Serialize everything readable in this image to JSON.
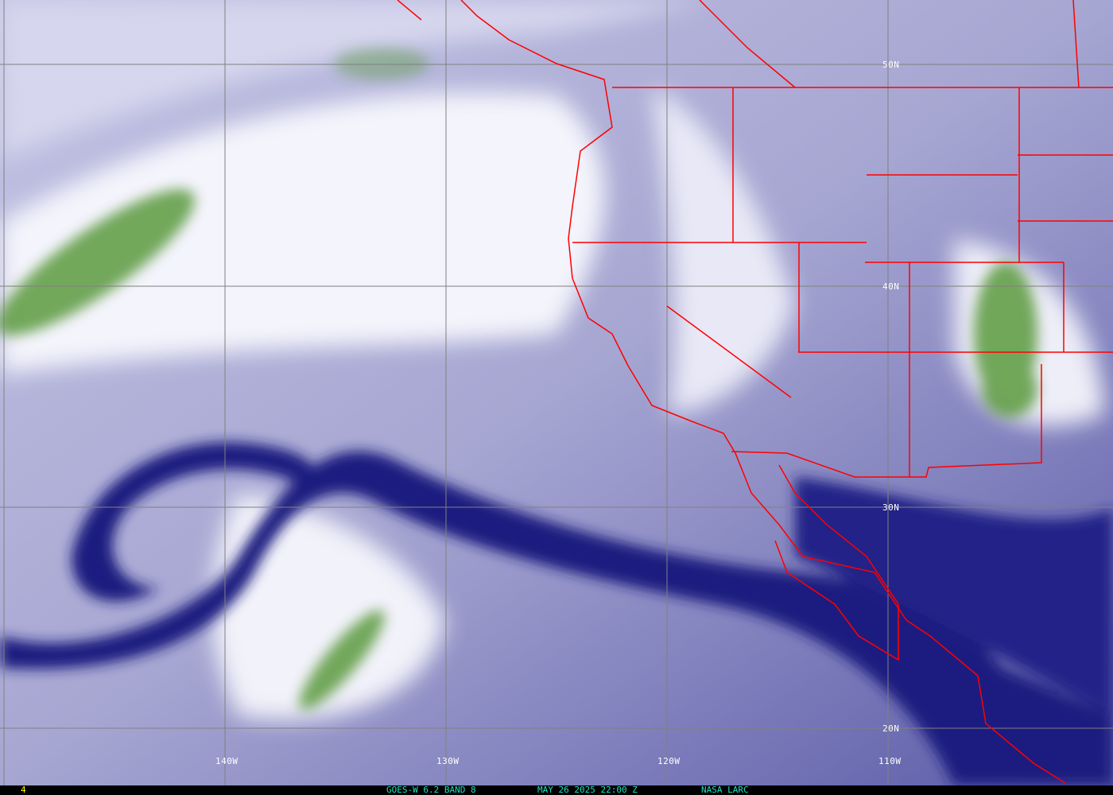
{
  "image": {
    "satellite": "GOES-W",
    "channel": "6.2 BAND 8",
    "datetime": "MAY 26 2025 22:00 Z",
    "source": "NASA LARC",
    "frame_number": "4"
  },
  "grid": {
    "longitude_labels": [
      "140W",
      "130W",
      "120W",
      "110W"
    ],
    "latitude_labels": [
      "50N",
      "40N",
      "30N",
      "20N"
    ]
  },
  "colors": {
    "dry": "#14147a",
    "mid": "#a8a8d4",
    "moist": "#ffffff",
    "cold_cloud": "#4e8a30",
    "borders": "#ff0000",
    "grid": "#808080",
    "footer_text": "#1ee0c0",
    "frame_number": "#ffff00"
  }
}
